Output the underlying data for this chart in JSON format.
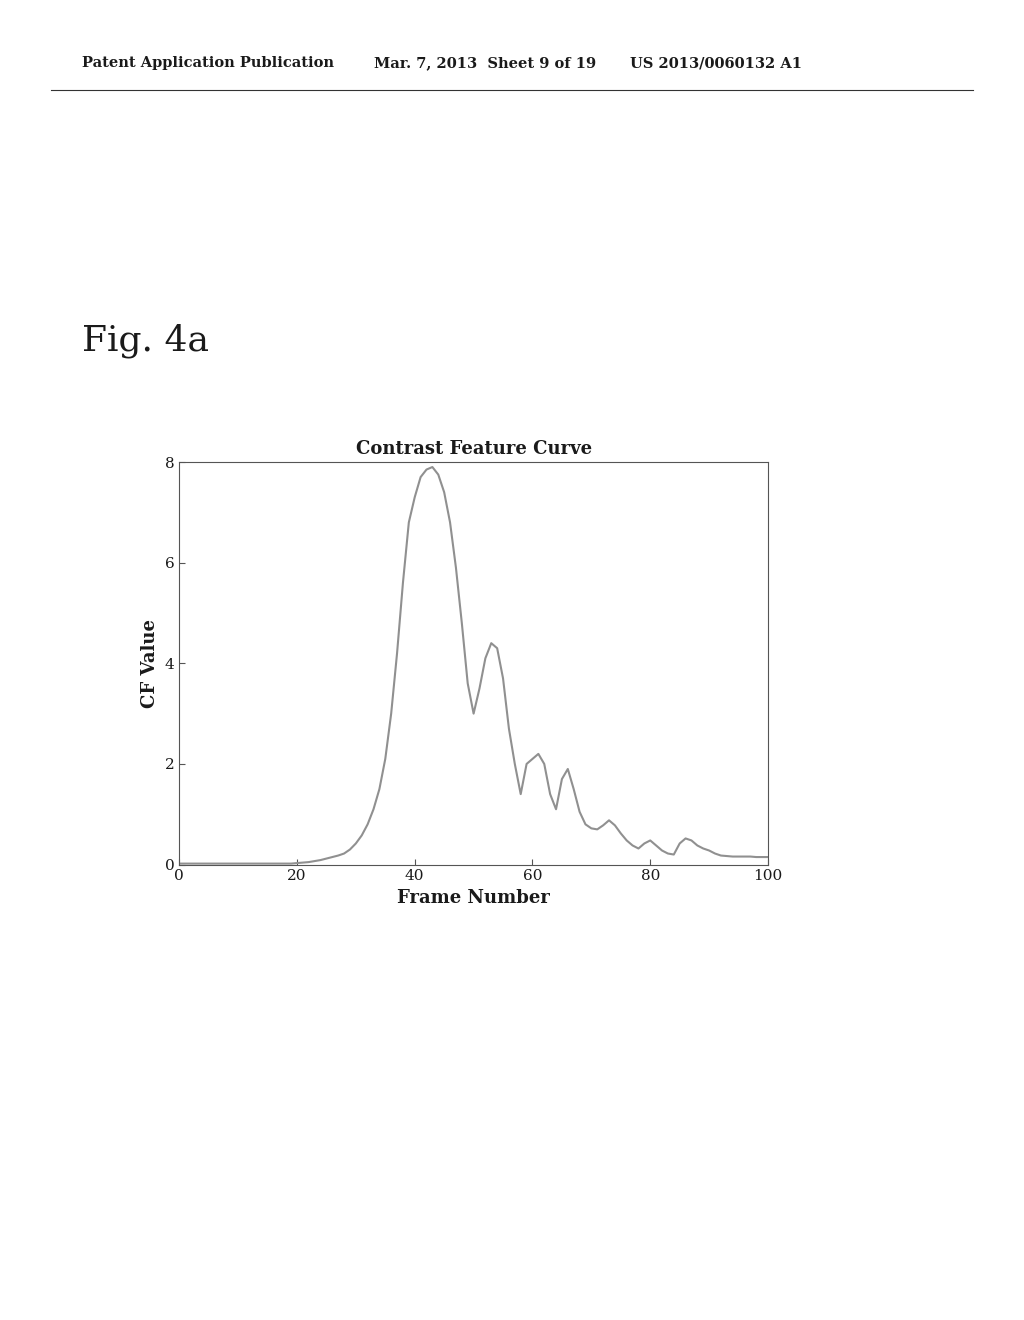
{
  "title": "Contrast Feature Curve",
  "xlabel": "Frame Number",
  "ylabel": "CF Value",
  "xlim": [
    0,
    100
  ],
  "ylim": [
    0,
    8
  ],
  "xticks": [
    0,
    20,
    40,
    60,
    80,
    100
  ],
  "yticks": [
    0,
    2,
    4,
    6,
    8
  ],
  "line_color": "#909090",
  "line_width": 1.5,
  "background_color": "#ffffff",
  "fig_label": "Fig. 4a",
  "header_left": "Patent Application Publication",
  "header_mid": "Mar. 7, 2013  Sheet 9 of 19",
  "header_right": "US 2013/0060132 A1",
  "curve_x": [
    0,
    1,
    2,
    3,
    4,
    5,
    6,
    7,
    8,
    9,
    10,
    11,
    12,
    13,
    14,
    15,
    16,
    17,
    18,
    19,
    20,
    21,
    22,
    23,
    24,
    25,
    26,
    27,
    28,
    29,
    30,
    31,
    32,
    33,
    34,
    35,
    36,
    37,
    38,
    39,
    40,
    41,
    42,
    43,
    44,
    45,
    46,
    47,
    48,
    49,
    50,
    51,
    52,
    53,
    54,
    55,
    56,
    57,
    58,
    59,
    60,
    61,
    62,
    63,
    64,
    65,
    66,
    67,
    68,
    69,
    70,
    71,
    72,
    73,
    74,
    75,
    76,
    77,
    78,
    79,
    80,
    81,
    82,
    83,
    84,
    85,
    86,
    87,
    88,
    89,
    90,
    91,
    92,
    93,
    94,
    95,
    96,
    97,
    98,
    99,
    100
  ],
  "curve_y": [
    0.02,
    0.02,
    0.02,
    0.02,
    0.02,
    0.02,
    0.02,
    0.02,
    0.02,
    0.02,
    0.02,
    0.02,
    0.02,
    0.02,
    0.02,
    0.02,
    0.02,
    0.02,
    0.02,
    0.02,
    0.03,
    0.04,
    0.05,
    0.07,
    0.09,
    0.12,
    0.15,
    0.18,
    0.22,
    0.3,
    0.42,
    0.58,
    0.8,
    1.1,
    1.5,
    2.1,
    3.0,
    4.2,
    5.6,
    6.8,
    7.3,
    7.7,
    7.85,
    7.9,
    7.75,
    7.4,
    6.8,
    5.9,
    4.8,
    3.6,
    3.0,
    3.5,
    4.1,
    4.4,
    4.3,
    3.7,
    2.7,
    2.0,
    1.4,
    2.0,
    2.1,
    2.2,
    2.0,
    1.4,
    1.1,
    1.7,
    1.9,
    1.5,
    1.05,
    0.8,
    0.72,
    0.7,
    0.78,
    0.88,
    0.78,
    0.62,
    0.48,
    0.38,
    0.32,
    0.42,
    0.48,
    0.38,
    0.28,
    0.22,
    0.2,
    0.42,
    0.52,
    0.48,
    0.38,
    0.32,
    0.28,
    0.22,
    0.18,
    0.17,
    0.16,
    0.16,
    0.16,
    0.16,
    0.15,
    0.15,
    0.15
  ]
}
